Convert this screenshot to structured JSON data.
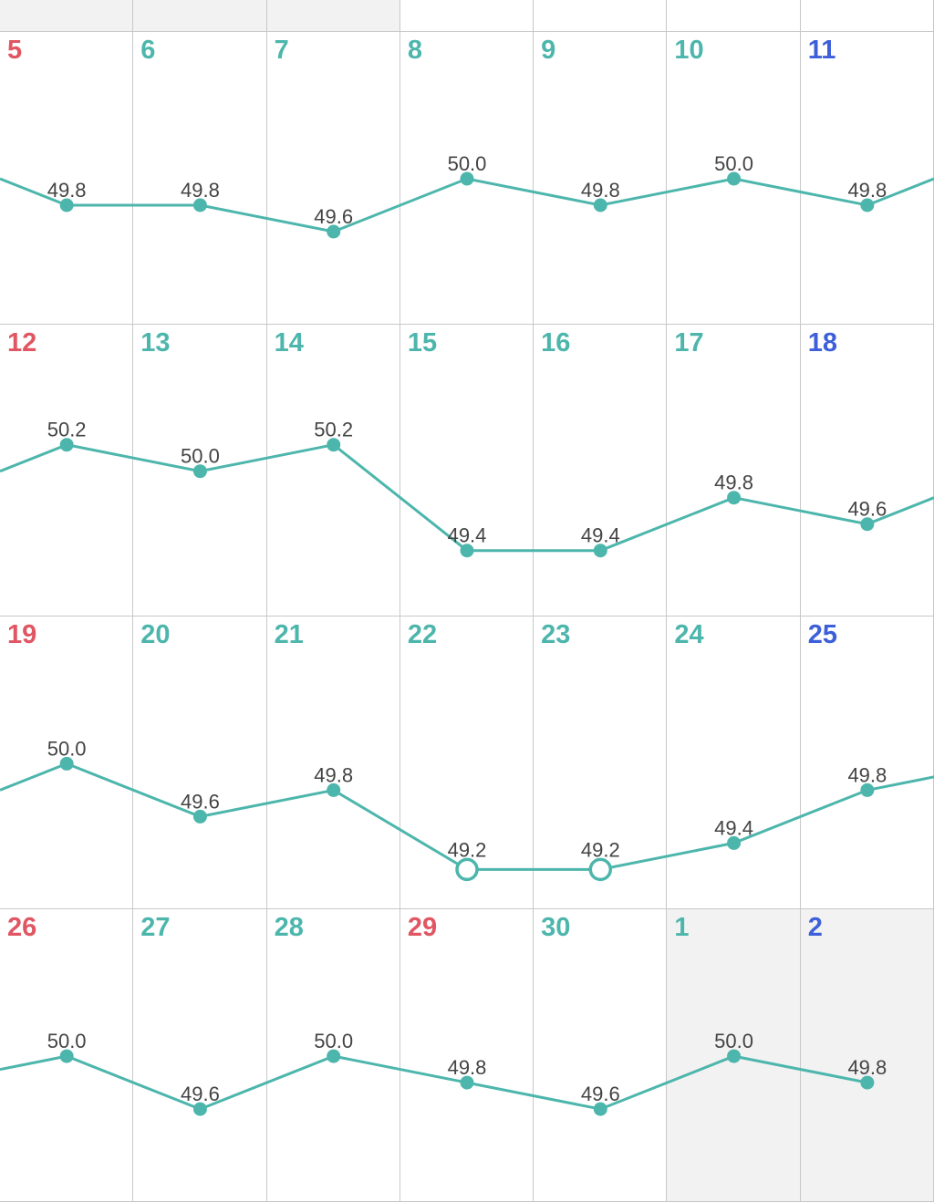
{
  "colors": {
    "line": "#4db6ac",
    "weekday": "#4db6ac",
    "sunday_holiday": "#e05663",
    "saturday": "#3d5fd9",
    "value_text": "#444444",
    "other_month_bg": "#f2f2f2",
    "grid": "#c8c8c8"
  },
  "top_partial_row": [
    {
      "other_month": true
    },
    {
      "other_month": true
    },
    {
      "other_month": true
    },
    {
      "other_month": false
    },
    {
      "other_month": false
    },
    {
      "other_month": false
    },
    {
      "other_month": false
    }
  ],
  "leading_value": 50.2,
  "chart_data": {
    "type": "line",
    "weeks": [
      [
        {
          "day": "5",
          "kind": "sunday_holiday",
          "value": 49.8
        },
        {
          "day": "6",
          "kind": "weekday",
          "value": 49.8
        },
        {
          "day": "7",
          "kind": "weekday",
          "value": 49.6
        },
        {
          "day": "8",
          "kind": "weekday",
          "value": 50.0
        },
        {
          "day": "9",
          "kind": "weekday",
          "value": 49.8
        },
        {
          "day": "10",
          "kind": "weekday",
          "value": 50.0
        },
        {
          "day": "11",
          "kind": "saturday",
          "value": 49.8
        }
      ],
      [
        {
          "day": "12",
          "kind": "sunday_holiday",
          "value": 50.2
        },
        {
          "day": "13",
          "kind": "weekday",
          "value": 50.0
        },
        {
          "day": "14",
          "kind": "weekday",
          "value": 50.2
        },
        {
          "day": "15",
          "kind": "weekday",
          "value": 49.4
        },
        {
          "day": "16",
          "kind": "weekday",
          "value": 49.4
        },
        {
          "day": "17",
          "kind": "weekday",
          "value": 49.8
        },
        {
          "day": "18",
          "kind": "saturday",
          "value": 49.6
        }
      ],
      [
        {
          "day": "19",
          "kind": "sunday_holiday",
          "value": 50.0
        },
        {
          "day": "20",
          "kind": "weekday",
          "value": 49.6
        },
        {
          "day": "21",
          "kind": "weekday",
          "value": 49.8
        },
        {
          "day": "22",
          "kind": "weekday",
          "value": 49.2,
          "hollow": true
        },
        {
          "day": "23",
          "kind": "weekday",
          "value": 49.2,
          "hollow": true
        },
        {
          "day": "24",
          "kind": "weekday",
          "value": 49.4
        },
        {
          "day": "25",
          "kind": "saturday",
          "value": 49.8
        }
      ],
      [
        {
          "day": "26",
          "kind": "sunday_holiday",
          "value": 50.0
        },
        {
          "day": "27",
          "kind": "weekday",
          "value": 49.6
        },
        {
          "day": "28",
          "kind": "weekday",
          "value": 50.0
        },
        {
          "day": "29",
          "kind": "sunday_holiday",
          "value": 49.8
        },
        {
          "day": "30",
          "kind": "weekday",
          "value": 49.6
        },
        {
          "day": "1",
          "kind": "weekday",
          "value": 50.0,
          "other_month": true
        },
        {
          "day": "2",
          "kind": "saturday",
          "value": 49.8,
          "other_month": true
        }
      ]
    ]
  }
}
